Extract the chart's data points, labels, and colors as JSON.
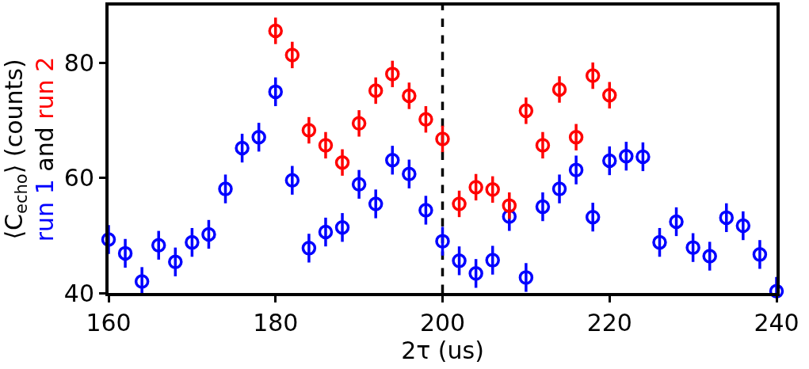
{
  "chart_data": {
    "type": "scatter",
    "xlabel": "2τ (us)",
    "ylabel": "⟨C$_{echo}$⟩ (counts)",
    "annotations": [
      "and"
    ],
    "xlim": [
      160,
      240
    ],
    "xticks": [
      160,
      180,
      200,
      220,
      240
    ],
    "ylim": [
      40,
      90
    ],
    "yticks": [
      40,
      60,
      80
    ],
    "grid": false,
    "legend": "left",
    "marker": "circle",
    "ref_lines": [
      {
        "axis": "x",
        "value": 200,
        "color": "#000000",
        "line_style": "dashed"
      }
    ],
    "series": [
      {
        "name": "run 1",
        "color": "#0000ff",
        "x": [
          160,
          162,
          164,
          166,
          168,
          170,
          172,
          174,
          176,
          178,
          180,
          182,
          184,
          186,
          188,
          190,
          192,
          194,
          196,
          198,
          200,
          202,
          204,
          206,
          208,
          210,
          212,
          214,
          216,
          218,
          220,
          222,
          224,
          226,
          228,
          230,
          232,
          234,
          236,
          238,
          240
        ],
        "values": [
          49.3,
          46.9,
          42.0,
          48.3,
          45.4,
          48.8,
          50.2,
          58.1,
          65.2,
          67.1,
          75.0,
          59.6,
          47.8,
          50.6,
          51.4,
          58.9,
          55.5,
          63.1,
          60.7,
          54.4,
          49.0,
          45.6,
          43.4,
          45.7,
          53.3,
          42.7,
          55.0,
          58.1,
          61.4,
          53.2,
          63.0,
          63.8,
          63.7,
          48.8,
          52.4,
          47.9,
          46.4,
          53.1,
          51.7,
          46.7,
          40.3
        ],
        "errors": [
          2.5,
          2.5,
          2.5,
          2.5,
          2.5,
          2.5,
          2.5,
          2.5,
          2.5,
          2.5,
          2.5,
          2.5,
          2.5,
          2.5,
          2.5,
          2.5,
          2.5,
          2.5,
          2.5,
          2.5,
          2.5,
          2.5,
          2.5,
          2.5,
          2.5,
          2.5,
          2.5,
          2.5,
          2.5,
          2.5,
          2.5,
          2.5,
          2.5,
          2.5,
          2.5,
          2.5,
          2.5,
          2.5,
          2.5,
          2.5,
          2.5
        ]
      },
      {
        "name": "run 2",
        "color": "#ff0000",
        "x": [
          180,
          182,
          184,
          186,
          188,
          190,
          192,
          194,
          196,
          198,
          200,
          202,
          204,
          206,
          208,
          210,
          212,
          214,
          216,
          218,
          220
        ],
        "values": [
          85.6,
          81.4,
          68.3,
          65.7,
          62.7,
          69.5,
          75.2,
          78.1,
          74.3,
          70.2,
          66.8,
          55.5,
          58.4,
          58.0,
          55.2,
          71.7,
          65.7,
          75.4,
          67.1,
          77.8,
          74.4
        ],
        "errors": [
          2.3,
          2.3,
          2.3,
          2.3,
          2.3,
          2.3,
          2.3,
          2.3,
          2.3,
          2.3,
          2.3,
          2.3,
          2.3,
          2.3,
          2.3,
          2.3,
          2.3,
          2.3,
          2.3,
          2.3,
          2.3
        ]
      }
    ]
  }
}
